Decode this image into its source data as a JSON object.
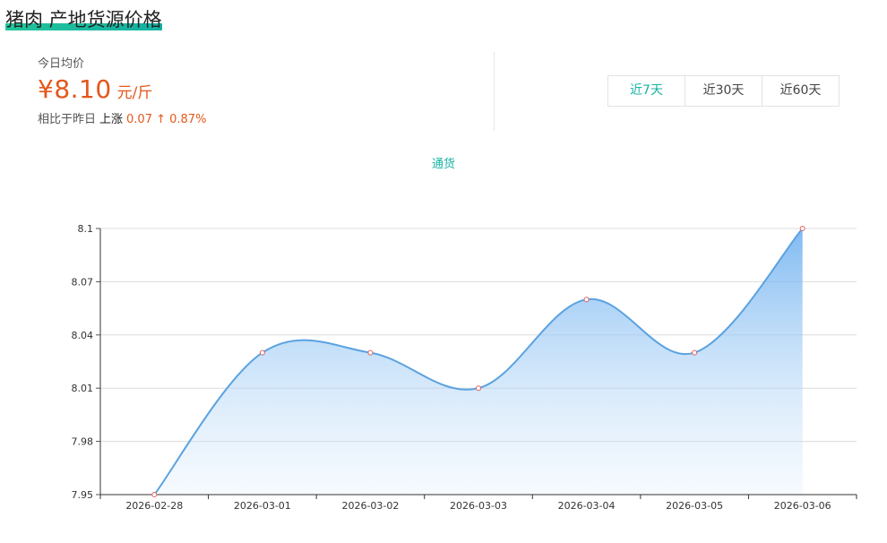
{
  "header": {
    "title": "猪肉 产地货源价格"
  },
  "price": {
    "today_label": "今日均价",
    "value": "¥8.10",
    "unit": "元/斤",
    "compare_label": "相比于昨日",
    "trend_word": "上涨",
    "trend_value": "0.07 ↑ 0.87%"
  },
  "range_tabs": [
    {
      "label": "近7天",
      "active": true
    },
    {
      "label": "近30天",
      "active": false
    },
    {
      "label": "近60天",
      "active": false
    }
  ],
  "colors": {
    "accent": "#17b3a3",
    "price": "#e4571c",
    "line": "#5aa2e0"
  },
  "chart_data": {
    "type": "area",
    "x": [
      "2026-02-28",
      "2026-03-01",
      "2026-03-02",
      "2026-03-03",
      "2026-03-04",
      "2026-03-05",
      "2026-03-06"
    ],
    "series": [
      {
        "name": "通货",
        "values": [
          7.95,
          8.03,
          8.03,
          8.01,
          8.06,
          8.03,
          8.1
        ]
      }
    ],
    "ylim": [
      7.95,
      8.1
    ],
    "yticks": [
      7.95,
      7.98,
      8.01,
      8.04,
      8.07,
      8.1
    ],
    "ytick_labels": [
      "7.95",
      "7.98",
      "8.01",
      "8.04",
      "8.07",
      "8.1"
    ],
    "smooth": true,
    "grid": true,
    "legend_position": "top-center"
  }
}
